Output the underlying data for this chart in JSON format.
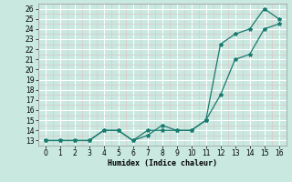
{
  "line1_x": [
    0,
    1,
    2,
    3,
    4,
    5,
    6,
    7,
    8,
    9,
    10,
    11,
    12,
    13,
    14,
    15,
    16
  ],
  "line1_y": [
    13.0,
    13.0,
    13.0,
    13.0,
    14.0,
    14.0,
    13.0,
    13.5,
    14.5,
    14.0,
    14.0,
    15.0,
    17.5,
    21.0,
    21.5,
    24.0,
    24.5
  ],
  "line2_x": [
    0,
    1,
    2,
    3,
    4,
    5,
    6,
    7,
    8,
    9,
    10,
    11,
    12,
    13,
    14,
    15,
    16
  ],
  "line2_y": [
    13.0,
    13.0,
    13.0,
    13.0,
    14.0,
    14.0,
    13.0,
    14.0,
    14.0,
    14.0,
    14.0,
    15.0,
    22.5,
    23.5,
    24.0,
    26.0,
    25.0
  ],
  "color": "#1a7a6e",
  "bg_color": "#c8e8e0",
  "grid_major_color": "#ffffff",
  "grid_minor_color": "#ddc8c8",
  "xlabel": "Humidex (Indice chaleur)",
  "ylim": [
    12.5,
    26.5
  ],
  "xlim": [
    -0.5,
    16.5
  ],
  "yticks": [
    13,
    14,
    15,
    16,
    17,
    18,
    19,
    20,
    21,
    22,
    23,
    24,
    25,
    26
  ],
  "xticks": [
    0,
    1,
    2,
    3,
    4,
    5,
    6,
    7,
    8,
    9,
    10,
    11,
    12,
    13,
    14,
    15,
    16
  ],
  "xlabel_fontsize": 6.0,
  "tick_fontsize": 5.5
}
